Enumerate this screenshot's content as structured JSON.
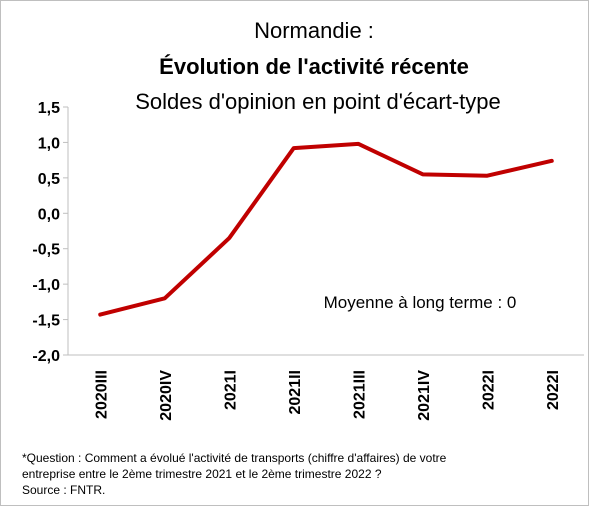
{
  "chart_data": {
    "type": "line",
    "title": "Normandie :",
    "subtitle_bold": "Évolution de l'activité récente",
    "subtitle": "Soldes d'opinion en point d'écart-type",
    "annotation": "Moyenne à long terme : 0",
    "footnote": [
      "*Question : Comment a évolué l'activité de transports (chiffre d'affaires) de votre",
      "entreprise entre le 2ème trimestre 2021 et le 2ème trimestre 2022 ?",
      "Source : FNTR."
    ],
    "categories": [
      "2020III",
      "2020IV",
      "2021I",
      "2021II",
      "2021III",
      "2021IV",
      "2022I",
      "2022I"
    ],
    "series": [
      {
        "name": "Solde",
        "color": "#c00000",
        "values": [
          -1.43,
          -1.2,
          -0.35,
          0.92,
          0.98,
          0.55,
          0.53,
          0.74
        ]
      }
    ],
    "ylim": [
      -2,
      1.5
    ],
    "yticks": [
      {
        "value": -2,
        "label": "-2,0"
      },
      {
        "value": -1.5,
        "label": "-1,5"
      },
      {
        "value": -1,
        "label": "-1,0"
      },
      {
        "value": -0.5,
        "label": "-0,5"
      },
      {
        "value": 0,
        "label": "0,0"
      },
      {
        "value": 0.5,
        "label": "0,5"
      },
      {
        "value": 1,
        "label": "1,0"
      },
      {
        "value": 1.5,
        "label": "1,5"
      }
    ],
    "grid": false
  }
}
